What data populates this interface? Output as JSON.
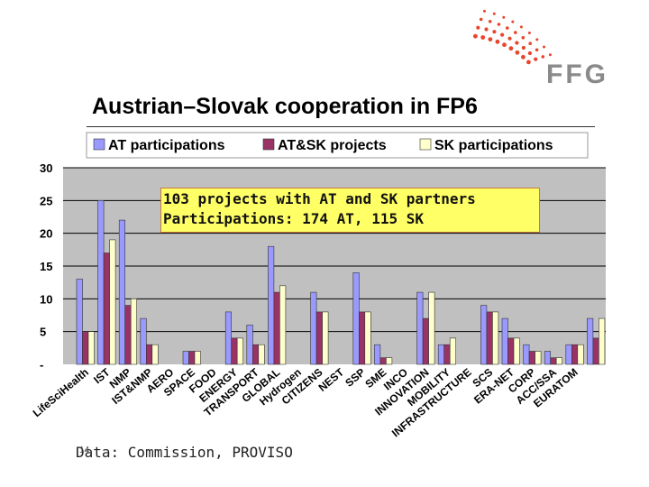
{
  "logo": {
    "text": "FFG"
  },
  "title": "Austrian–Slovak cooperation in FP6",
  "callout": {
    "line1": "103 projects with AT and SK partners",
    "line2": "Participations: 174 AT, 115 SK"
  },
  "source": "Data: Commission, PROVISO",
  "page_number": "14",
  "colors": {
    "plot_background": "#c0c0c0",
    "at": "#9999ff",
    "atsk": "#993366",
    "sk": "#ffffcc",
    "callout_fill": "#ffff66",
    "logo_accent": "#e8452c",
    "logo_text": "#8a8a8a"
  },
  "chart_data": {
    "type": "bar",
    "title": "",
    "xlabel": "",
    "ylabel": "",
    "ylim": [
      0,
      30
    ],
    "yticks": [
      "30",
      "25",
      "20",
      "15",
      "10",
      "5",
      "-"
    ],
    "grid": true,
    "legend_position": "top",
    "categories": [
      "Life Sci Health",
      "IST",
      "NMP",
      "IST&NMP",
      "AERO",
      "SPACE",
      "FOOD",
      "ENERGY",
      "TRANSPORT",
      "GLOBAL",
      "Hydrogen",
      "CITIZENS",
      "NEST",
      "SSP",
      "SME",
      "INCO",
      "INNOVATION",
      "MOBILITY",
      "INFRASTRUCTURE",
      "SCS",
      "ERA-NET",
      "CORP",
      "ACC/SSA",
      "EURATOM"
    ],
    "xtick_labels": [
      "LifeSciHealth",
      "IST",
      "NMP",
      "IST&NMP",
      "AERO",
      "SPACE",
      "FOOD",
      "ENERGY",
      "TRANSPORT",
      "GLOBAL",
      "Hydrogen",
      "CITIZENS",
      "NEST",
      "SSP",
      "SME",
      "INCO",
      "INNOVATION",
      "MOBILITY",
      "INFRASTRUCTURE",
      "SCS",
      "ERA-NET",
      "CORP",
      "ACC/SSA",
      "EURATOM"
    ],
    "series": [
      {
        "name": "AT participations",
        "values": [
          13,
          25,
          22,
          7,
          0,
          2,
          0,
          8,
          6,
          18,
          0,
          11,
          0,
          14,
          3,
          0,
          11,
          3,
          0,
          9,
          7,
          3,
          2,
          3
        ]
      },
      {
        "name": "AT&SK projects",
        "values": [
          5,
          17,
          9,
          3,
          0,
          2,
          0,
          4,
          3,
          11,
          0,
          8,
          0,
          8,
          1,
          0,
          7,
          3,
          0,
          8,
          4,
          2,
          1,
          3
        ]
      },
      {
        "name": "SK participations",
        "values": [
          5,
          19,
          10,
          3,
          0,
          2,
          0,
          4,
          3,
          12,
          0,
          8,
          0,
          8,
          1,
          0,
          11,
          4,
          0,
          8,
          4,
          2,
          1,
          3
        ]
      }
    ],
    "extra_bars": [
      {
        "after_category": "EURATOM",
        "values": [
          7,
          4,
          7
        ]
      }
    ]
  }
}
